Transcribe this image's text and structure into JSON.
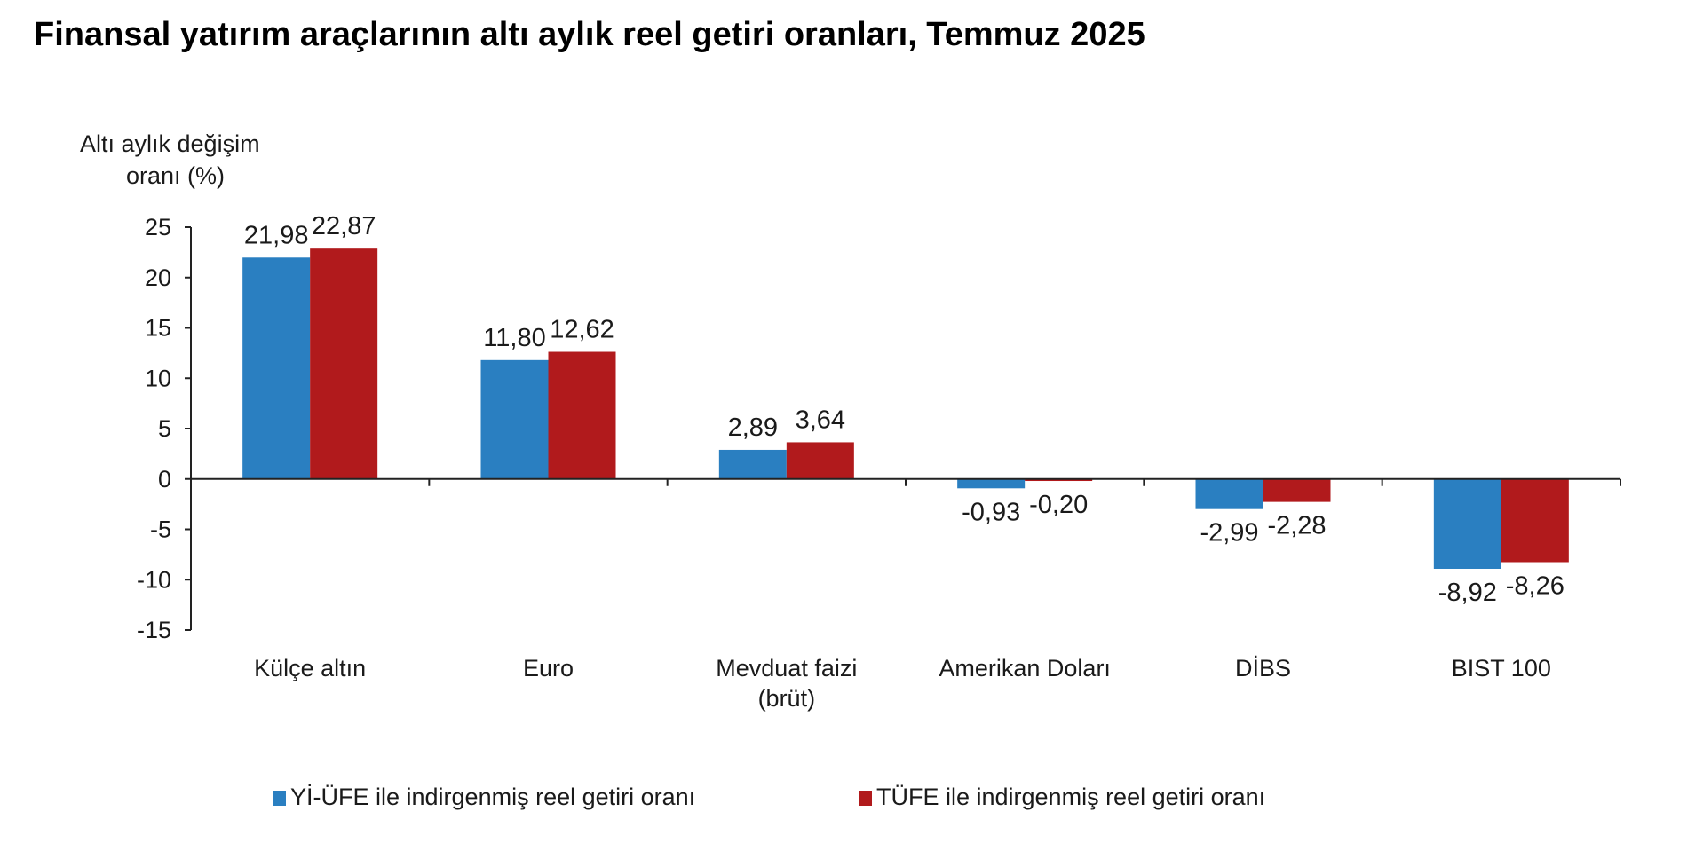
{
  "chart_data": {
    "type": "bar",
    "title": "Finansal yatırım araçlarının altı aylık reel getiri oranları, Temmuz 2025",
    "ylabel": [
      "Altı aylık değişim",
      "oranı (%)"
    ],
    "xlabel": "",
    "ylim": [
      -15,
      25
    ],
    "yticks": [
      25,
      20,
      15,
      10,
      5,
      0,
      -5,
      -10,
      -15
    ],
    "categories": [
      [
        "Külçe altın"
      ],
      [
        "Euro"
      ],
      [
        "Mevduat faizi",
        "(brüt)"
      ],
      [
        "Amerikan Doları"
      ],
      [
        "DİBS"
      ],
      [
        "BIST 100"
      ]
    ],
    "series": [
      {
        "name": "Yİ-ÜFE ile indirgenmiş reel getiri oranı",
        "color": "#2a7fc1",
        "values": [
          21.98,
          11.8,
          2.89,
          -0.93,
          -2.99,
          -8.92
        ],
        "labels": [
          "21,98",
          "11,80",
          "2,89",
          "-0,93",
          "-2,99",
          "-8,92"
        ]
      },
      {
        "name": "TÜFE ile indirgenmiş reel getiri oranı",
        "color": "#b11a1c",
        "values": [
          22.87,
          12.62,
          3.64,
          -0.2,
          -2.28,
          -8.26
        ],
        "labels": [
          "22,87",
          "12,62",
          "3,64",
          "-0,20",
          "-2,28",
          "-8,26"
        ]
      }
    ],
    "grid": false,
    "legend_position": "bottom"
  }
}
